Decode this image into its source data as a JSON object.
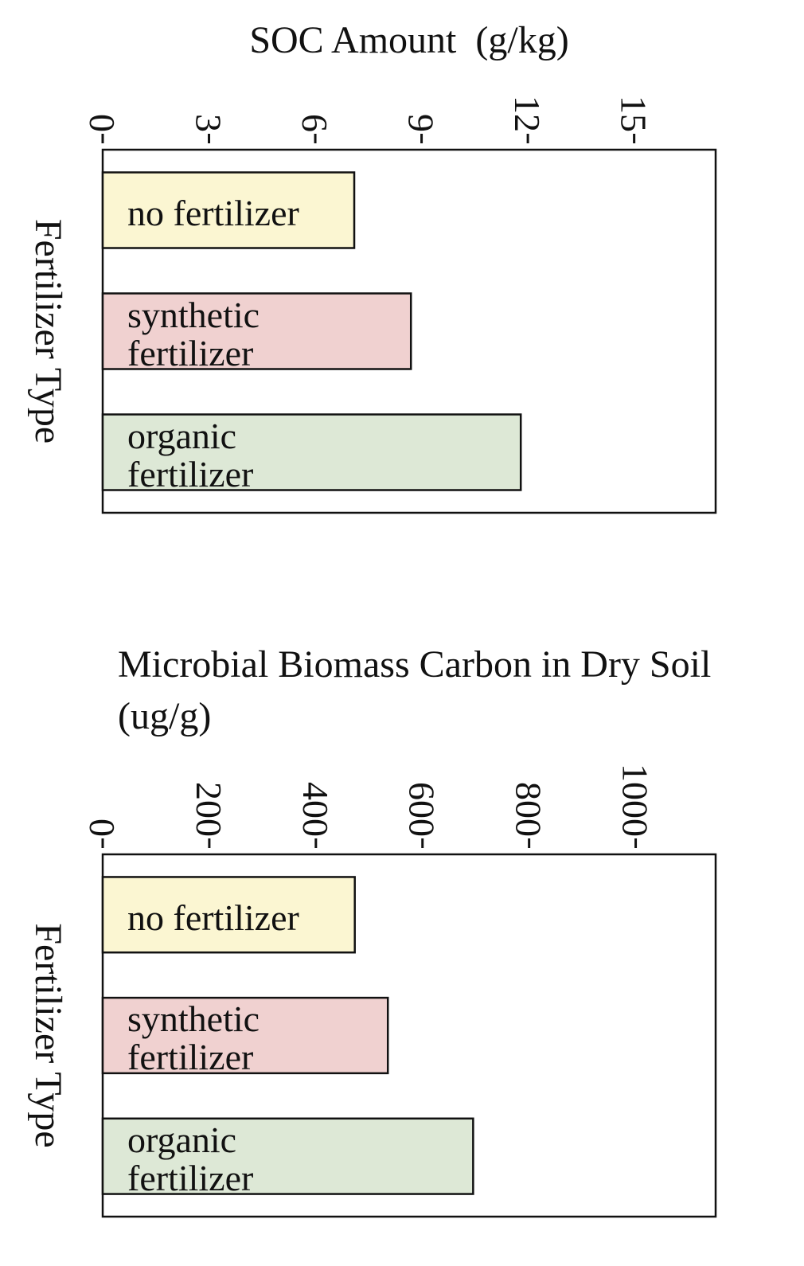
{
  "chart_data": [
    {
      "type": "bar",
      "orientation": "horizontal",
      "title": "SOC Amount  (g/kg)",
      "ylabel": "Fertilizer Type",
      "categories": [
        "no fertilizer",
        "synthetic fertilizer",
        "organic fertilizer"
      ],
      "values": [
        7.1,
        8.7,
        11.8
      ],
      "colors": [
        "#fbf6d2",
        "#f0d1d0",
        "#dde8d6"
      ],
      "xlim": [
        0,
        17.3
      ],
      "xticks": [
        0,
        3,
        6,
        9,
        12,
        15
      ]
    },
    {
      "type": "bar",
      "orientation": "horizontal",
      "title": "Microbial Biomass Carbon in Dry Soil (ug/g)",
      "ylabel": "Fertilizer Type",
      "categories": [
        "no fertilizer",
        "synthetic fertilizer",
        "organic fertilizer"
      ],
      "values": [
        473,
        535,
        695
      ],
      "colors": [
        "#fbf6d2",
        "#f0d1d0",
        "#dde8d6"
      ],
      "xlim": [
        0,
        1150
      ],
      "xticks": [
        0,
        200,
        400,
        600,
        800,
        1000
      ]
    }
  ]
}
